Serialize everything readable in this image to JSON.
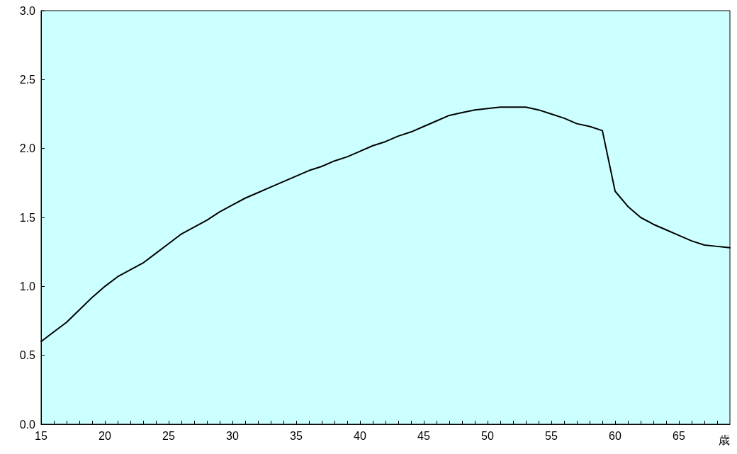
{
  "chart_data": {
    "type": "line",
    "xlabel": "歳",
    "x": [
      15,
      16,
      17,
      18,
      19,
      20,
      21,
      22,
      23,
      24,
      25,
      26,
      27,
      28,
      29,
      30,
      31,
      32,
      33,
      34,
      35,
      36,
      37,
      38,
      39,
      40,
      41,
      42,
      43,
      44,
      45,
      46,
      47,
      48,
      49,
      50,
      51,
      52,
      53,
      54,
      55,
      56,
      57,
      58,
      59,
      60,
      61,
      62,
      63,
      64,
      65,
      66,
      67,
      68,
      69
    ],
    "series": [
      {
        "color": "#000000",
        "values": [
          0.6,
          0.67,
          0.74,
          0.83,
          0.92,
          1.0,
          1.07,
          1.12,
          1.17,
          1.24,
          1.31,
          1.38,
          1.43,
          1.48,
          1.54,
          1.59,
          1.64,
          1.68,
          1.72,
          1.76,
          1.8,
          1.84,
          1.87,
          1.91,
          1.94,
          1.98,
          2.02,
          2.05,
          2.09,
          2.12,
          2.16,
          2.2,
          2.24,
          2.26,
          2.28,
          2.29,
          2.3,
          2.3,
          2.3,
          2.28,
          2.25,
          2.22,
          2.18,
          2.16,
          2.13,
          1.69,
          1.58,
          1.5,
          1.45,
          1.41,
          1.37,
          1.33,
          1.3,
          1.29,
          1.28
        ]
      }
    ],
    "xlim": [
      15,
      69
    ],
    "xticks": [
      15,
      {
        "value": 16,
        "label": null
      },
      {
        "value": 17,
        "label": null
      },
      {
        "value": 18,
        "label": null
      },
      {
        "value": 19,
        "label": null
      },
      20,
      {
        "value": 21,
        "label": null
      },
      {
        "value": 22,
        "label": null
      },
      {
        "value": 23,
        "label": null
      },
      {
        "value": 24,
        "label": null
      },
      25,
      {
        "value": 26,
        "label": null
      },
      {
        "value": 27,
        "label": null
      },
      {
        "value": 28,
        "label": null
      },
      {
        "value": 29,
        "label": null
      },
      30,
      {
        "value": 31,
        "label": null
      },
      {
        "value": 32,
        "label": null
      },
      {
        "value": 33,
        "label": null
      },
      {
        "value": 34,
        "label": null
      },
      35,
      {
        "value": 36,
        "label": null
      },
      {
        "value": 37,
        "label": null
      },
      {
        "value": 38,
        "label": null
      },
      {
        "value": 39,
        "label": null
      },
      40,
      {
        "value": 41,
        "label": null
      },
      {
        "value": 42,
        "label": null
      },
      {
        "value": 43,
        "label": null
      },
      {
        "value": 44,
        "label": null
      },
      45,
      {
        "value": 46,
        "label": null
      },
      {
        "value": 47,
        "label": null
      },
      {
        "value": 48,
        "label": null
      },
      {
        "value": 49,
        "label": null
      },
      50,
      {
        "value": 51,
        "label": null
      },
      {
        "value": 52,
        "label": null
      },
      {
        "value": 53,
        "label": null
      },
      {
        "value": 54,
        "label": null
      },
      55,
      {
        "value": 56,
        "label": null
      },
      {
        "value": 57,
        "label": null
      },
      {
        "value": 58,
        "label": null
      },
      {
        "value": 59,
        "label": null
      },
      60,
      {
        "value": 61,
        "label": null
      },
      {
        "value": 62,
        "label": null
      },
      {
        "value": 63,
        "label": null
      },
      {
        "value": 64,
        "label": null
      },
      65,
      {
        "value": 66,
        "label": null
      },
      {
        "value": 67,
        "label": null
      },
      {
        "value": 68,
        "label": null
      }
    ],
    "ylim": [
      0,
      3
    ],
    "yticks": [
      {
        "value": 0,
        "label": "0.0"
      },
      {
        "value": 0.5,
        "label": "0.5"
      },
      {
        "value": 1,
        "label": "1.0"
      },
      {
        "value": 1.5,
        "label": "1.5"
      },
      {
        "value": 2,
        "label": "2.0"
      },
      {
        "value": 2.5,
        "label": "2.5"
      },
      {
        "value": 3,
        "label": "3.0"
      }
    ],
    "grid": false,
    "marker": "none",
    "line_style": "solid"
  }
}
